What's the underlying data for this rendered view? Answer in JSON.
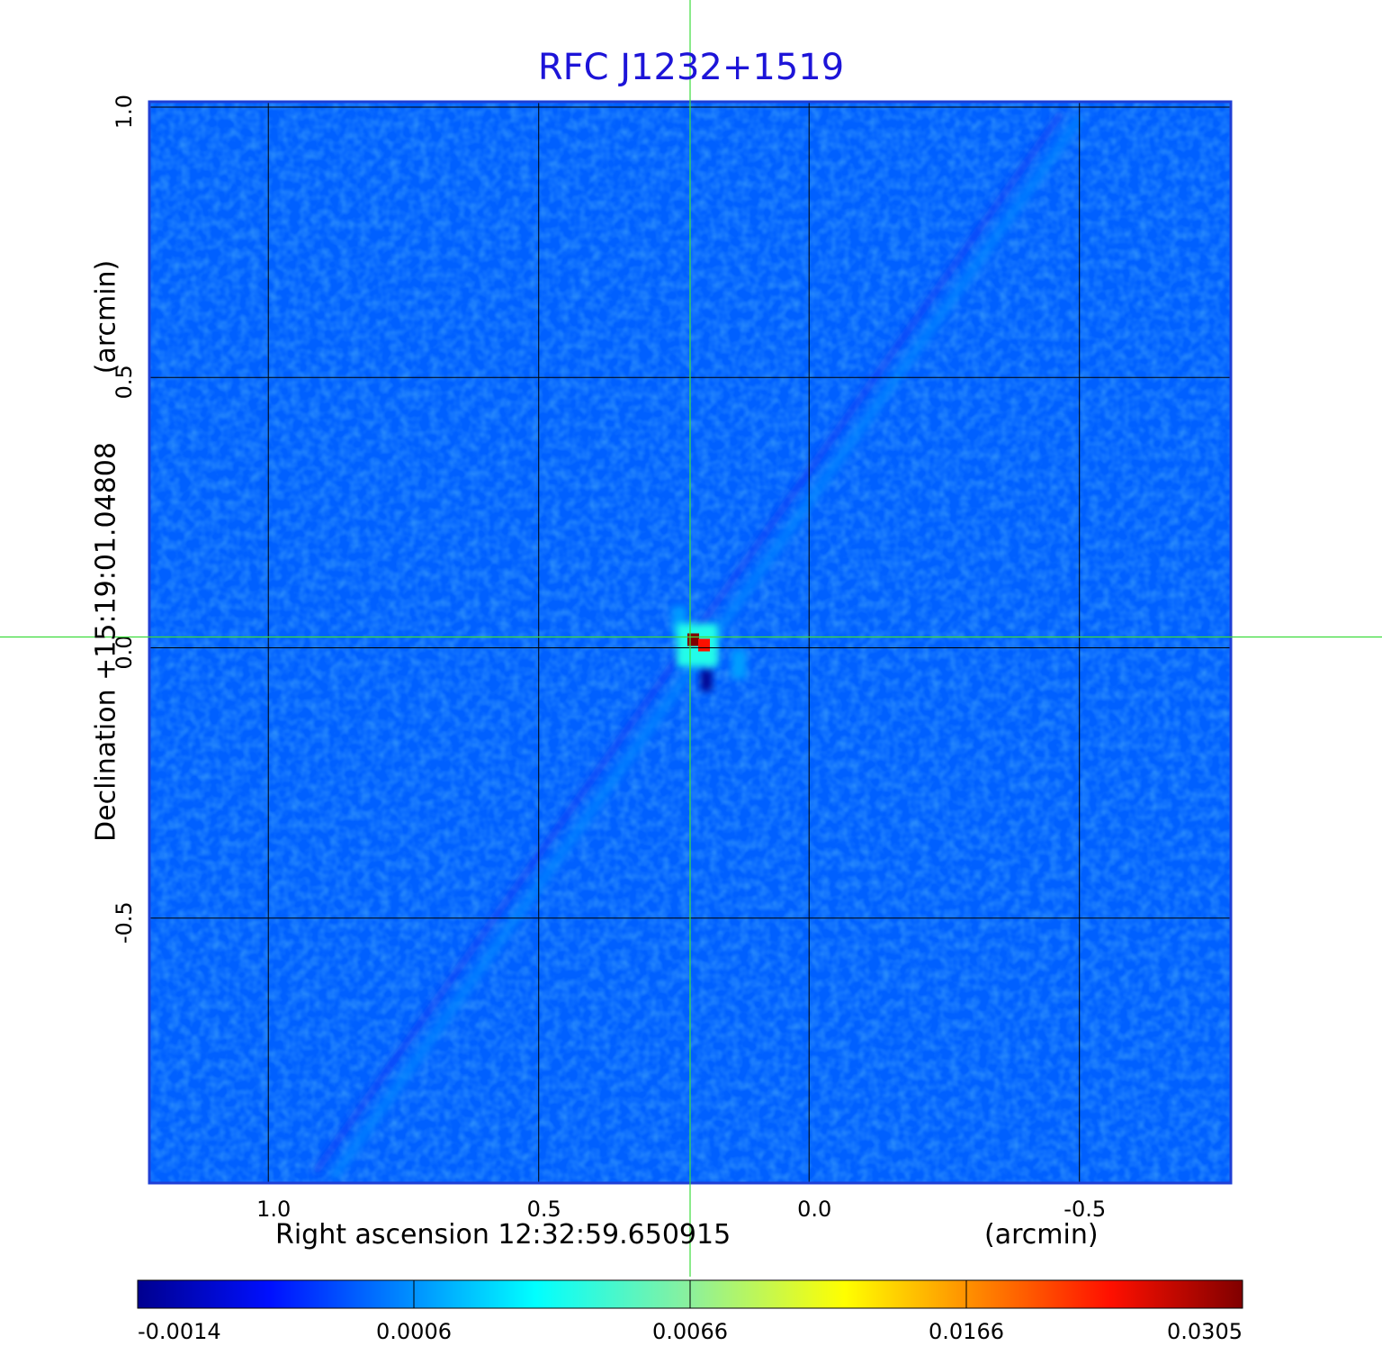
{
  "chart_data": {
    "type": "heatmap",
    "title": "RFC J1232+1519",
    "xlabel": "Right ascension  12:32:59.650915",
    "x_unit": "(arcmin)",
    "ylabel": "Declination  +15:19:01.04808",
    "y_unit": "(arcmin)",
    "x_ticks": [
      1.0,
      0.5,
      0.0,
      -0.5
    ],
    "x_tick_labels": [
      "1.0",
      "0.5",
      "0.0",
      "-0.5"
    ],
    "y_ticks": [
      1.0,
      0.5,
      0.0,
      -0.5
    ],
    "y_tick_labels": [
      "1.0",
      "0.5",
      "0.0",
      "-0.5"
    ],
    "xlim": [
      1.22,
      -0.78
    ],
    "ylim": [
      -0.99,
      1.01
    ],
    "grid": true,
    "crosshair": {
      "x": 0.22,
      "y": 0.02,
      "color": "#3ddc3d"
    },
    "colorbar": {
      "tick_values": [
        -0.0014,
        0.0006,
        0.0066,
        0.0166,
        0.0305
      ],
      "tick_labels": [
        "-0.0014",
        "0.0006",
        "0.0066",
        "0.0166",
        "0.0305"
      ],
      "colormap": "jet"
    },
    "background_level": 0.0002,
    "peak": {
      "x": 0.21,
      "y": 0.01,
      "value": 0.0305
    },
    "features": [
      {
        "kind": "core",
        "x": 0.215,
        "y": 0.015,
        "value": 0.0305
      },
      {
        "kind": "core",
        "x": 0.195,
        "y": 0.005,
        "value": 0.024
      },
      {
        "kind": "knot",
        "x": 0.13,
        "y": -0.03,
        "value": 0.0009
      },
      {
        "kind": "knot",
        "x": 0.24,
        "y": 0.05,
        "value": 0.0008
      },
      {
        "kind": "negative",
        "x": 0.19,
        "y": -0.06,
        "value": -0.0014
      },
      {
        "kind": "sidelobe-line",
        "from": [
          0.88,
          -0.98
        ],
        "to": [
          -0.5,
          0.98
        ],
        "value": 0.0005
      }
    ],
    "colors": {
      "frame": "#1e3fd6",
      "title": "#1d14d8",
      "grid": "#000000"
    }
  }
}
